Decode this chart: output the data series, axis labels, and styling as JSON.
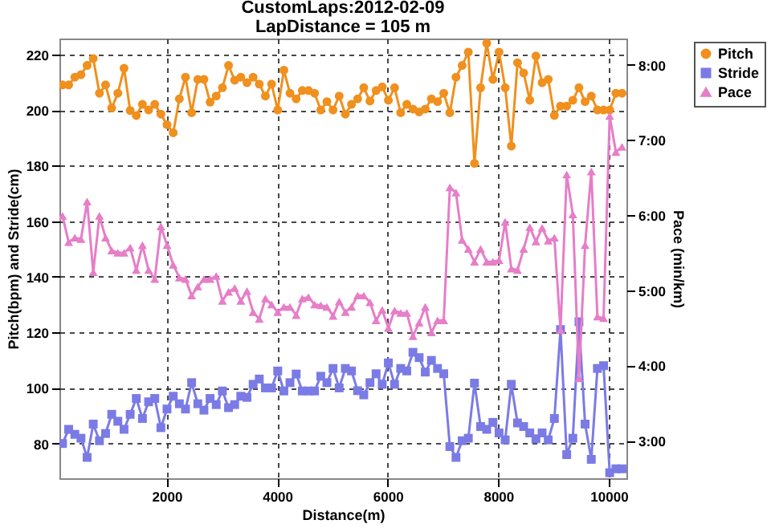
{
  "chart_data": {
    "type": "line",
    "title": "CustomLaps:2012-02-09",
    "subtitle": "LapDistance = 105 m",
    "xlabel": "Distance(m)",
    "ylabel": "Pitch(bpm) and Stride(cm)",
    "y2label": "Pace (min/km)",
    "x": [
      116,
      227,
      339,
      450,
      561,
      672,
      784,
      895,
      1006,
      1117,
      1229,
      1340,
      1451,
      1562,
      1674,
      1785,
      1896,
      2007,
      2119,
      2230,
      2341,
      2452,
      2564,
      2675,
      2786,
      2897,
      3009,
      3120,
      3231,
      3342,
      3454,
      3565,
      3676,
      3787,
      3899,
      4010,
      4121,
      4232,
      4344,
      4455,
      4566,
      4677,
      4789,
      4900,
      5011,
      5122,
      5234,
      5345,
      5456,
      5567,
      5679,
      5790,
      5901,
      6012,
      6124,
      6235,
      6346,
      6457,
      6569,
      6680,
      6791,
      6902,
      7014,
      7125,
      7236,
      7347,
      7459,
      7570,
      7681,
      7792,
      7904,
      8015,
      8126,
      8237,
      8349,
      8460,
      8571,
      8682,
      8794,
      8905,
      9016,
      9127,
      9239,
      9350,
      9461,
      9572,
      9684,
      9795,
      9906,
      10017,
      10129,
      10240
    ],
    "series": [
      {
        "name": "Pitch",
        "color": "#f0901e",
        "marker": "circle",
        "values": [
          209,
          209,
          211.8,
          212.7,
          216,
          218.5,
          206,
          209,
          200.7,
          206,
          215,
          199.8,
          198,
          202,
          200,
          202,
          198.5,
          194.7,
          191.8,
          204,
          211.8,
          199,
          211,
          211,
          202.8,
          205,
          208,
          216,
          210.7,
          211.8,
          209.8,
          211.8,
          209.3,
          205,
          209.3,
          200,
          214.3,
          206,
          204,
          207,
          207,
          206,
          200,
          203,
          200,
          205,
          198.5,
          202,
          204,
          208,
          203.2,
          207,
          208.3,
          203.5,
          208,
          199,
          202,
          200.3,
          199.3,
          200.3,
          204,
          203,
          206,
          199,
          211.8,
          216,
          220.8,
          180.8,
          208,
          224,
          211,
          220.8,
          208,
          187,
          217,
          213.3,
          203.5,
          219.4,
          209.8,
          211,
          198,
          201.4,
          201.4,
          203.5,
          208,
          203,
          205,
          200,
          200,
          200,
          206,
          206
        ]
      },
      {
        "name": "Stride",
        "color": "#7b7be6",
        "marker": "square",
        "values": [
          80,
          85.1,
          83.3,
          81.9,
          75,
          87,
          81,
          83.6,
          90.5,
          88,
          85.1,
          90.5,
          96.2,
          89,
          95,
          96.2,
          85.7,
          92.4,
          97,
          94.3,
          92.4,
          101.9,
          94.3,
          92,
          96.2,
          94,
          98.9,
          92.9,
          94,
          97,
          96.6,
          101.3,
          103.2,
          100,
          100,
          106.1,
          98.9,
          101.9,
          105,
          98.9,
          98.9,
          98.9,
          104.2,
          101.9,
          107,
          100,
          107,
          106.1,
          99,
          97.5,
          101.9,
          105.1,
          101.3,
          109,
          101.3,
          107,
          106.1,
          112.8,
          110.9,
          105.7,
          109.9,
          107,
          105.1,
          78.9,
          75,
          81,
          81.9,
          101.7,
          86.1,
          85.1,
          87.6,
          83.8,
          81.3,
          101.3,
          87.4,
          86.1,
          83.8,
          81.7,
          83.8,
          81.3,
          89,
          121,
          76,
          81.9,
          123.8,
          87,
          74.3,
          107,
          108,
          69.5,
          70.9,
          70.9
        ]
      },
      {
        "name": "Pace",
        "color": "#e67ec8",
        "marker": "triangle",
        "axis": "y2",
        "values": [
          5.99,
          5.64,
          5.7,
          5.68,
          6.18,
          5.24,
          5.99,
          5.7,
          5.53,
          5.5,
          5.5,
          5.57,
          5.27,
          5.6,
          5.27,
          5.15,
          5.85,
          5.6,
          5.34,
          5.17,
          5.15,
          4.93,
          5.05,
          5.15,
          5.15,
          5.19,
          4.86,
          4.98,
          5.03,
          4.86,
          4.99,
          4.71,
          4.62,
          4.89,
          4.81,
          4.71,
          4.78,
          4.78,
          4.67,
          4.89,
          4.91,
          4.81,
          4.8,
          4.78,
          4.66,
          4.85,
          4.71,
          4.78,
          4.93,
          4.93,
          4.84,
          4.6,
          4.74,
          4.5,
          4.73,
          4.7,
          4.7,
          4.39,
          4.57,
          4.78,
          4.44,
          4.6,
          4.6,
          6.37,
          6.3,
          5.67,
          5.55,
          5.38,
          5.55,
          5.38,
          5.38,
          5.4,
          5.91,
          5.29,
          5.27,
          5.55,
          5.84,
          5.65,
          5.83,
          5.66,
          5.7,
          4.47,
          6.54,
          6.01,
          3.83,
          5.6,
          6.58,
          4.65,
          4.63,
          7.32,
          6.84,
          6.91
        ]
      }
    ],
    "xlim": [
      60,
      10320
    ],
    "xticks": [
      2000,
      4000,
      6000,
      8000,
      10000
    ],
    "ylim": [
      67.5,
      225.7
    ],
    "yticks": [
      80,
      100,
      120,
      140,
      160,
      180,
      200,
      220
    ],
    "y2lim": [
      2.5,
      8.35
    ],
    "y2ticks": [
      {
        "value": 3,
        "label": "3:00"
      },
      {
        "value": 4,
        "label": "4:00"
      },
      {
        "value": 5,
        "label": "5:00"
      },
      {
        "value": 6,
        "label": "6:00"
      },
      {
        "value": 7,
        "label": "7:00"
      },
      {
        "value": 8,
        "label": "8:00"
      }
    ],
    "grid": true,
    "legend": "top right",
    "line_style": "solid"
  }
}
